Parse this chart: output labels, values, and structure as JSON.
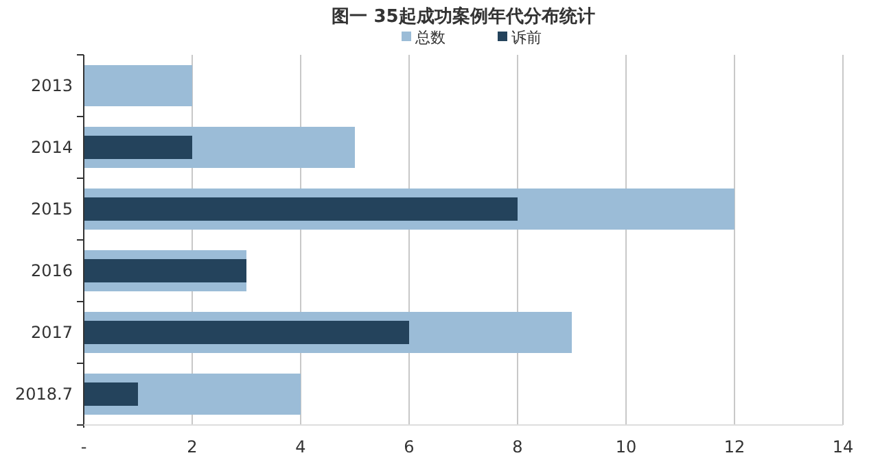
{
  "chart_data": {
    "type": "bar",
    "orientation": "horizontal",
    "title": "图一 35起成功案例年代分布统计",
    "categories": [
      "2013",
      "2014",
      "2015",
      "2016",
      "2017",
      "2018.7"
    ],
    "series": [
      {
        "name": "总数",
        "color": "#9bbcd7",
        "values": [
          2,
          5,
          12,
          3,
          9,
          4
        ]
      },
      {
        "name": "诉前",
        "color": "#24435c",
        "values": [
          null,
          2,
          8,
          3,
          6,
          1
        ]
      }
    ],
    "xlim": [
      0,
      14
    ],
    "xticks": [
      {
        "value": 0,
        "label": "-"
      },
      2,
      4,
      6,
      8,
      10,
      12,
      14
    ],
    "grid": "x",
    "legend": "top"
  }
}
